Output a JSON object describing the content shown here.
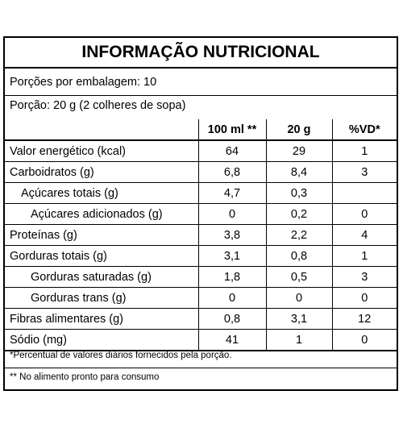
{
  "title": "INFORMAÇÃO NUTRICIONAL",
  "servings_per_package": "Porções por embalagem: 10",
  "serving_size": "Porção: 20 g (2 colheres de sopa)",
  "columns": [
    "",
    "100 ml **",
    "20 g",
    "%VD*"
  ],
  "rows": [
    {
      "name": "Valor energético (kcal)",
      "per100": "64",
      "perServing": "29",
      "vd": "1"
    },
    {
      "name": "Carboidratos (g)",
      "per100": "6,8",
      "perServing": "8,4",
      "vd": "3"
    },
    {
      "name": "Açúcares totais (g)",
      "per100": "4,7",
      "perServing": "0,3",
      "vd": ""
    },
    {
      "name": "Açúcares adicionados (g)",
      "per100": "0",
      "perServing": "0,2",
      "vd": "0"
    },
    {
      "name": "Proteínas (g)",
      "per100": "3,8",
      "perServing": "2,2",
      "vd": "4"
    },
    {
      "name": "Gorduras totais (g)",
      "per100": "3,1",
      "perServing": "0,8",
      "vd": "1"
    },
    {
      "name": "Gorduras saturadas (g)",
      "per100": "1,8",
      "perServing": "0,5",
      "vd": "3"
    },
    {
      "name": "Gorduras trans (g)",
      "per100": "0",
      "perServing": "0",
      "vd": "0"
    },
    {
      "name": "Fibras alimentares (g)",
      "per100": "0,8",
      "perServing": "3,1",
      "vd": "12"
    },
    {
      "name": "Sódio (mg)",
      "per100": "41",
      "perServing": "1",
      "vd": "0"
    }
  ],
  "footnote_vd": "*Percentual de valores diários fornecidos pela porção.",
  "footnote_base": "** No alimento pronto para consumo"
}
